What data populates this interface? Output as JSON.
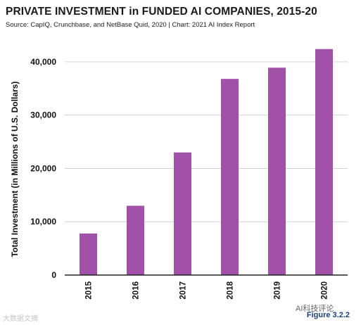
{
  "header": {
    "title": "PRIVATE INVESTMENT in FUNDED AI COMPANIES, 2015-20",
    "source": "Source: CapIQ, Crunchbase, and NetBase Quid, 2020 | Chart: 2021 AI Index Report"
  },
  "footer": {
    "figure": "Figure 3.2.2",
    "watermark_left": "大数据文摘",
    "watermark_right": "AI科技评论"
  },
  "colors": {
    "bar": "#a152a8",
    "grid": "#d3d3d3",
    "axis": "#222222"
  },
  "chart_data": {
    "type": "bar",
    "categories": [
      "2015",
      "2016",
      "2017",
      "2018",
      "2019",
      "2020"
    ],
    "values": [
      7800,
      13000,
      23000,
      36800,
      38900,
      42400
    ],
    "title": "PRIVATE INVESTMENT in FUNDED AI COMPANIES, 2015-20",
    "xlabel": "",
    "ylabel": "Total Investment (in Millions of U.S. Dollars)",
    "ylim": [
      0,
      45000
    ],
    "yticks": [
      0,
      10000,
      20000,
      30000,
      40000
    ],
    "ytick_labels": [
      "0",
      "10,000",
      "20,000",
      "30,000",
      "40,000"
    ],
    "grid": true,
    "legend": "none"
  }
}
